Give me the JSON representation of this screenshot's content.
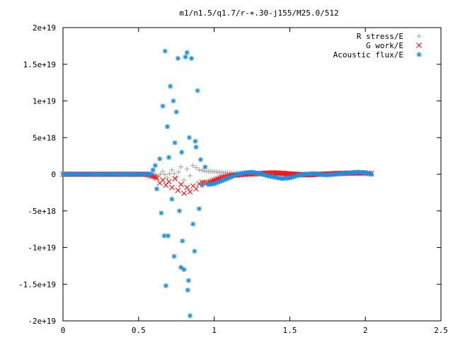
{
  "chart_data": {
    "type": "scatter",
    "title": "m1/n1.5/q1.7/r-+.30-j155/M25.0/512",
    "xlabel": "",
    "ylabel": "",
    "xlim": [
      0,
      2.5
    ],
    "ylim": [
      -2e+19,
      2e+19
    ],
    "x_ticks": [
      0,
      0.5,
      1,
      1.5,
      2,
      2.5
    ],
    "x_tick_labels": [
      "0",
      "0.5",
      "1",
      "1.5",
      "2",
      "2.5"
    ],
    "y_ticks": [
      -2e+19,
      -1.5e+19,
      -1e+19,
      -5e+18,
      0,
      5e+18,
      1e+19,
      1.5e+19,
      2e+19
    ],
    "y_tick_labels": [
      "-2e+19",
      "-1.5e+19",
      "-1e+19",
      "-5e+18",
      "0",
      "5e+18",
      "1e+19",
      "1.5e+19",
      "2e+19"
    ],
    "grid": false,
    "legend_position": "top-right",
    "series": [
      {
        "name": "R stress/E",
        "marker": "+",
        "color": "#a0a0a0",
        "points": [
          [
            0.0,
            0
          ],
          [
            0.2,
            0
          ],
          [
            0.4,
            0
          ],
          [
            0.55,
            0
          ],
          [
            0.6,
            1e+17
          ],
          [
            0.63,
            -3e+17
          ],
          [
            0.66,
            4e+17
          ],
          [
            0.69,
            -5e+17
          ],
          [
            0.72,
            6e+17
          ],
          [
            0.75,
            -4e+17
          ],
          [
            0.78,
            1e+18
          ],
          [
            0.8,
            -8e+17
          ],
          [
            0.82,
            7e+17
          ],
          [
            0.84,
            -2e+17
          ],
          [
            0.86,
            1.2e+18
          ],
          [
            0.88,
            9e+17
          ],
          [
            0.9,
            6e+17
          ],
          [
            0.92,
            5e+17
          ],
          [
            0.95,
            4e+17
          ],
          [
            1.0,
            3.5e+17
          ],
          [
            1.05,
            2.5e+17
          ],
          [
            1.1,
            2e+17
          ],
          [
            1.15,
            1.5e+17
          ],
          [
            1.2,
            1e+17
          ],
          [
            1.3,
            5e+16
          ],
          [
            1.5,
            2e+16
          ],
          [
            1.7,
            0
          ],
          [
            1.9,
            1e+17
          ],
          [
            2.04,
            0
          ]
        ]
      },
      {
        "name": "G work/E",
        "marker": "x",
        "color": "#ff0000",
        "points": [
          [
            0.0,
            0
          ],
          [
            0.2,
            0
          ],
          [
            0.4,
            0
          ],
          [
            0.55,
            0
          ],
          [
            0.62,
            -5e+17
          ],
          [
            0.64,
            -1.2e+18
          ],
          [
            0.66,
            -8e+17
          ],
          [
            0.68,
            -1.5e+18
          ],
          [
            0.7,
            -1e+18
          ],
          [
            0.72,
            -1.8e+18
          ],
          [
            0.74,
            -6e+17
          ],
          [
            0.76,
            -2.2e+18
          ],
          [
            0.78,
            -1.4e+18
          ],
          [
            0.8,
            -2.6e+18
          ],
          [
            0.82,
            -1.8e+18
          ],
          [
            0.84,
            -2.4e+18
          ],
          [
            0.86,
            -1.6e+18
          ],
          [
            0.88,
            -2e+18
          ],
          [
            0.9,
            -1.3e+18
          ],
          [
            0.92,
            -1.1e+18
          ],
          [
            0.95,
            -1.2e+18
          ],
          [
            1.0,
            -8e+17
          ],
          [
            1.05,
            -4e+17
          ],
          [
            1.1,
            -2e+17
          ],
          [
            1.2,
            0
          ],
          [
            1.3,
            1e+17
          ],
          [
            1.4,
            2e+17
          ],
          [
            1.6,
            -1e+17
          ],
          [
            1.8,
            1e+17
          ],
          [
            2.0,
            2e+17
          ],
          [
            2.04,
            1e+17
          ]
        ]
      },
      {
        "name": "Acoustic flux/E",
        "marker": "*",
        "color": "#1e8fe0",
        "points": [
          [
            0.0,
            0
          ],
          [
            0.1,
            0
          ],
          [
            0.2,
            0
          ],
          [
            0.3,
            0
          ],
          [
            0.4,
            0
          ],
          [
            0.5,
            0
          ],
          [
            0.58,
            0
          ],
          [
            0.61,
            1.2e+18
          ],
          [
            0.62,
            -2e+18
          ],
          [
            0.64,
            2.1e+18
          ],
          [
            0.65,
            -5.3e+18
          ],
          [
            0.66,
            9.3e+18
          ],
          [
            0.67,
            -8.4e+18
          ],
          [
            0.675,
            1.68e+19
          ],
          [
            0.68,
            -1.52e+19
          ],
          [
            0.69,
            6.5e+18
          ],
          [
            0.695,
            -8.4e+18
          ],
          [
            0.7,
            2.3e+18
          ],
          [
            0.71,
            1.2e+19
          ],
          [
            0.72,
            -3.4e+18
          ],
          [
            0.73,
            1e+19
          ],
          [
            0.735,
            -1.12e+19
          ],
          [
            0.74,
            4.3e+18
          ],
          [
            0.75,
            8.5e+18
          ],
          [
            0.76,
            1.58e+19
          ],
          [
            0.77,
            -5e+18
          ],
          [
            0.78,
            -1.27e+19
          ],
          [
            0.785,
            3e+18
          ],
          [
            0.79,
            -9.1e+18
          ],
          [
            0.8,
            -1.3e+19
          ],
          [
            0.81,
            1.6e+19
          ],
          [
            0.82,
            1.66e+19
          ],
          [
            0.825,
            -1.58e+19
          ],
          [
            0.83,
            -1.45e+19
          ],
          [
            0.835,
            5e+18
          ],
          [
            0.84,
            -1.93e+19
          ],
          [
            0.85,
            1.58e+19
          ],
          [
            0.86,
            -6.8e+18
          ],
          [
            0.87,
            -1.05e+19
          ],
          [
            0.875,
            4.5e+18
          ],
          [
            0.88,
            3.7e+18
          ],
          [
            0.89,
            1.14e+19
          ],
          [
            0.9,
            -4.7e+18
          ],
          [
            0.91,
            2e+18
          ],
          [
            0.92,
            -1.5e+18
          ],
          [
            0.94,
            1e+18
          ],
          [
            0.96,
            -1.4e+18
          ],
          [
            1.0,
            -1.3e+18
          ],
          [
            1.05,
            -9e+17
          ],
          [
            1.1,
            -5e+17
          ],
          [
            1.15,
            0
          ],
          [
            1.2,
            2e+17
          ],
          [
            1.25,
            3e+17
          ],
          [
            1.3,
            1e+17
          ],
          [
            1.35,
            -2e+17
          ],
          [
            1.4,
            -4e+17
          ],
          [
            1.45,
            -6e+17
          ],
          [
            1.5,
            -5e+17
          ],
          [
            1.55,
            -2e+17
          ],
          [
            1.6,
            0
          ],
          [
            1.65,
            1e+17
          ],
          [
            1.7,
            0
          ],
          [
            1.75,
            -1e+17
          ],
          [
            1.8,
            0
          ],
          [
            1.85,
            1e+17
          ],
          [
            1.9,
            2e+17
          ],
          [
            1.95,
            3e+17
          ],
          [
            2.0,
            2e+17
          ],
          [
            2.04,
            0
          ]
        ]
      }
    ]
  }
}
